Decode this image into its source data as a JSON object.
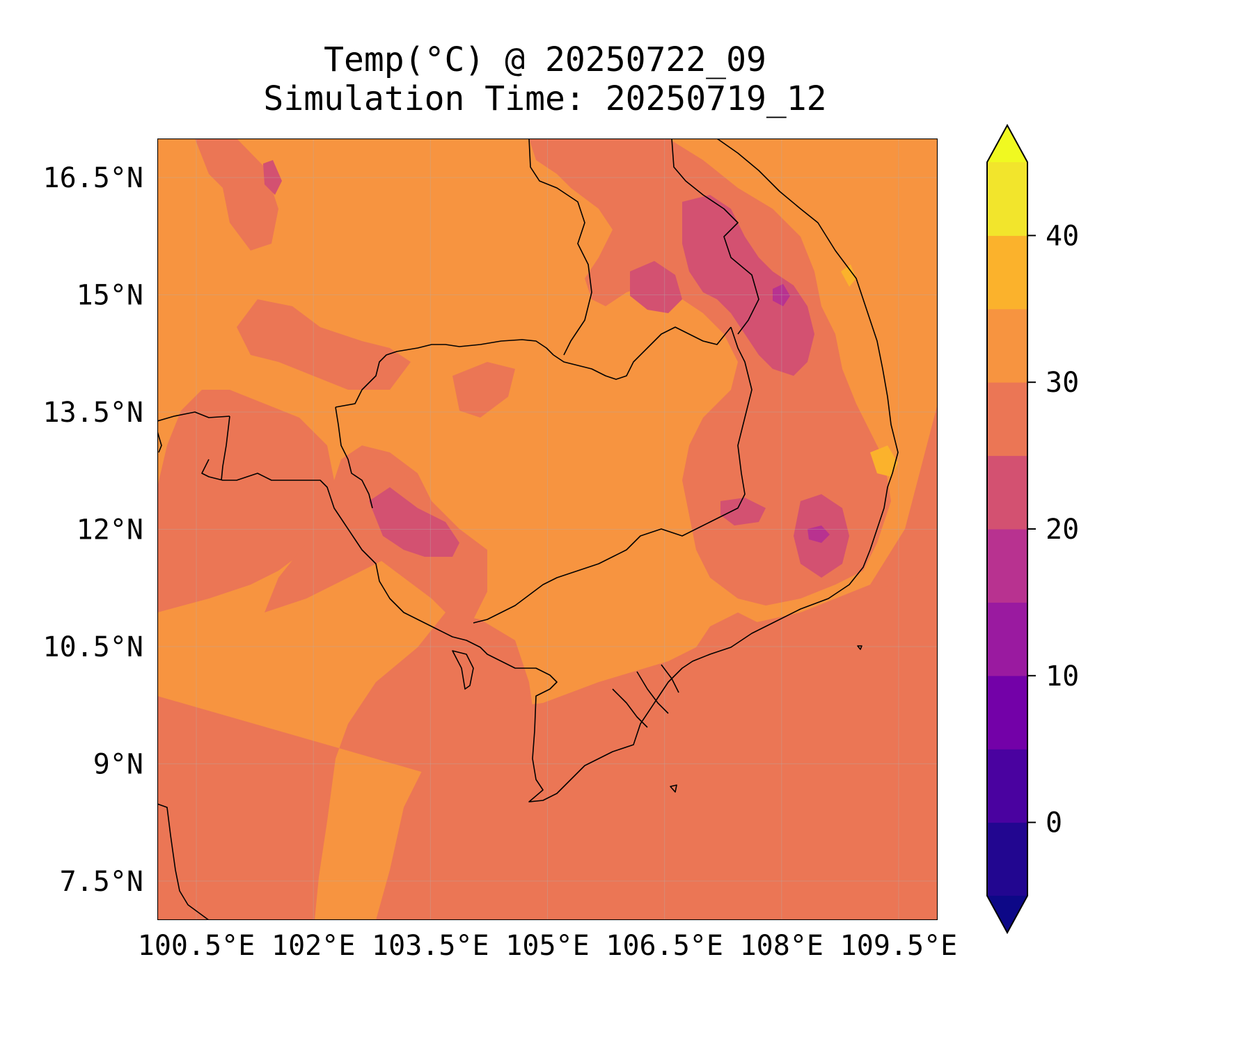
{
  "title": {
    "line1": "Temp(°C) @ 20250722_09",
    "line2": "Simulation Time: 20250719_12"
  },
  "map": {
    "lon_range": [
      100.0,
      110.0
    ],
    "lat_range": [
      7.0,
      17.0
    ],
    "lon_ticks": [
      {
        "value": 100.5,
        "label": "100.5°E"
      },
      {
        "value": 102.0,
        "label": "102°E"
      },
      {
        "value": 103.5,
        "label": "103.5°E"
      },
      {
        "value": 105.0,
        "label": "105°E"
      },
      {
        "value": 106.5,
        "label": "106.5°E"
      },
      {
        "value": 108.0,
        "label": "108°E"
      },
      {
        "value": 109.5,
        "label": "109.5°E"
      }
    ],
    "lat_ticks": [
      {
        "value": 16.5,
        "label": "16.5°N"
      },
      {
        "value": 15.0,
        "label": "15°N"
      },
      {
        "value": 13.5,
        "label": "13.5°N"
      },
      {
        "value": 12.0,
        "label": "12°N"
      },
      {
        "value": 10.5,
        "label": "10.5°N"
      },
      {
        "value": 9.0,
        "label": "9°N"
      },
      {
        "value": 7.5,
        "label": "7.5°N"
      }
    ],
    "gridlines": true
  },
  "colorbar": {
    "min": -5,
    "max": 45,
    "extend": "both",
    "levels": [
      -5,
      0,
      5,
      10,
      15,
      20,
      25,
      30,
      35,
      40,
      45
    ],
    "colors": [
      "#0d0887",
      "#2b0594",
      "#4c02a1",
      "#7e03a8",
      "#9c179e",
      "#bd3786",
      "#d5536f",
      "#ec7853",
      "#f89540",
      "#fdb42f",
      "#f0f921"
    ],
    "band_colors": [
      "#220690",
      "#4a02a0",
      "#7301a8",
      "#9a1aa0",
      "#b83290",
      "#d35171",
      "#eb7655",
      "#f79440",
      "#fbb22c",
      "#f2e52c"
    ],
    "over_color": "#f0f921",
    "under_color": "#0d0887",
    "ticks": [
      {
        "value": 0,
        "label": "0"
      },
      {
        "value": 10,
        "label": "10"
      },
      {
        "value": 20,
        "label": "20"
      },
      {
        "value": 30,
        "label": "30"
      },
      {
        "value": 40,
        "label": "40"
      }
    ]
  },
  "field": {
    "background_level_color": "#f79440",
    "warm_band_color": "#eb7655",
    "cool_band_color": "#d35171",
    "coolest_band_color": "#b83290",
    "hot_band_color": "#fbb22c"
  }
}
